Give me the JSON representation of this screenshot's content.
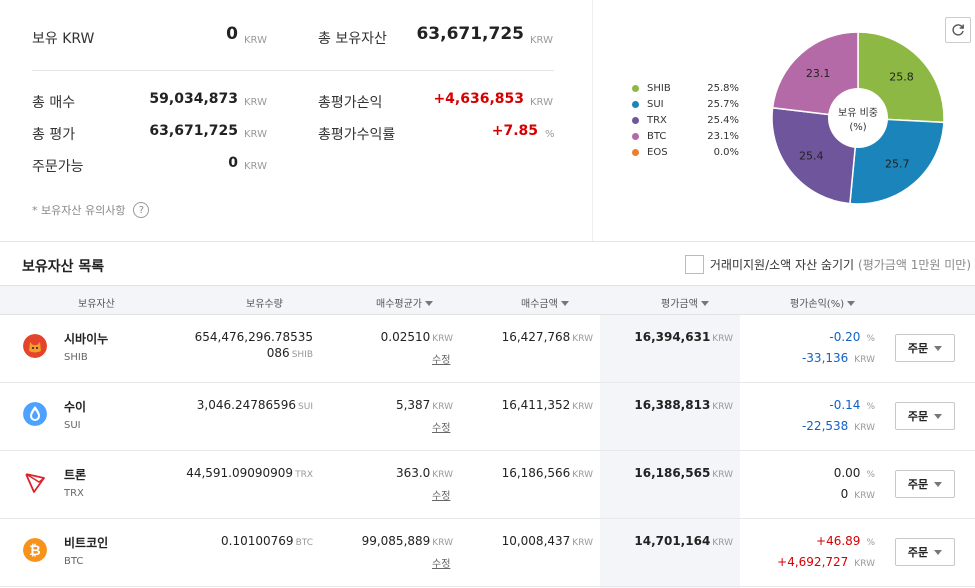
{
  "summary": {
    "krw_label": "보유 KRW",
    "krw_value": "0",
    "krw_unit": "KRW",
    "total_assets_label": "총 보유자산",
    "total_assets_value": "63,671,725",
    "total_assets_unit": "KRW",
    "total_buy_label": "총 매수",
    "total_buy_value": "59,034,873",
    "total_buy_unit": "KRW",
    "total_pl_label": "총평가손익",
    "total_pl_value": "+4,636,853",
    "total_pl_unit": "KRW",
    "total_eval_label": "총 평가",
    "total_eval_value": "63,671,725",
    "total_eval_unit": "KRW",
    "total_rate_label": "총평가수익률",
    "total_rate_value": "+7.85",
    "total_rate_unit": "%",
    "orderable_label": "주문가능",
    "orderable_value": "0",
    "orderable_unit": "KRW",
    "notice": "* 보유자산 유의사항",
    "notice_icon": "?"
  },
  "pie": {
    "center_line1": "보유 비중",
    "center_line2": "(%)",
    "refresh_icon": "refresh-icon"
  },
  "chart_data": {
    "type": "pie",
    "title": "보유 비중 (%)",
    "slices": [
      {
        "name": "SHIB",
        "value": 25.8,
        "label": "25.8%",
        "color": "#8db844"
      },
      {
        "name": "SUI",
        "value": 25.7,
        "label": "25.7%",
        "color": "#1a84bb"
      },
      {
        "name": "TRX",
        "value": 25.4,
        "label": "25.4%",
        "color": "#6e559c"
      },
      {
        "name": "BTC",
        "value": 23.1,
        "label": "23.1%",
        "color": "#b56aa8"
      },
      {
        "name": "EOS",
        "value": 0.0,
        "label": "0.0%",
        "color": "#f07b2a"
      }
    ]
  },
  "list": {
    "title": "보유자산 목록",
    "hide_label": "거래미지원/소액 자산 숨기기",
    "hide_note": "(평가금액 1만원 미만)"
  },
  "table": {
    "headers": {
      "asset": "보유자산",
      "qty": "보유수량",
      "avg": "매수평균가",
      "buy": "매수금액",
      "eval": "평가금액",
      "pl": "평가손익(%)"
    },
    "rows": [
      {
        "name": "시바이누",
        "symbol": "SHIB",
        "icon": "shib-icon",
        "qty_line1": "654,476,296.78535",
        "qty_line2": "086",
        "qty_unit": "SHIB",
        "avg": "0.02510",
        "avg_unit": "KRW",
        "edit": "수정",
        "buy": "16,427,768",
        "buy_unit": "KRW",
        "eval": "16,394,631",
        "eval_unit": "KRW",
        "pl_rate": "-0.20",
        "pl_rate_unit": "%",
        "pl_amount": "-33,136",
        "pl_amount_unit": "KRW",
        "order": "주문",
        "tone": "blue"
      },
      {
        "name": "수이",
        "symbol": "SUI",
        "icon": "sui-icon",
        "qty_line1": "3,046.24786596",
        "qty_line2": "",
        "qty_unit": "SUI",
        "avg": "5,387",
        "avg_unit": "KRW",
        "edit": "수정",
        "buy": "16,411,352",
        "buy_unit": "KRW",
        "eval": "16,388,813",
        "eval_unit": "KRW",
        "pl_rate": "-0.14",
        "pl_rate_unit": "%",
        "pl_amount": "-22,538",
        "pl_amount_unit": "KRW",
        "order": "주문",
        "tone": "blue"
      },
      {
        "name": "트론",
        "symbol": "TRX",
        "icon": "trx-icon",
        "qty_line1": "44,591.09090909",
        "qty_line2": "",
        "qty_unit": "TRX",
        "avg": "363.0",
        "avg_unit": "KRW",
        "edit": "수정",
        "buy": "16,186,566",
        "buy_unit": "KRW",
        "eval": "16,186,565",
        "eval_unit": "KRW",
        "pl_rate": "0.00",
        "pl_rate_unit": "%",
        "pl_amount": "0",
        "pl_amount_unit": "KRW",
        "order": "주문",
        "tone": "neutral"
      },
      {
        "name": "비트코인",
        "symbol": "BTC",
        "icon": "btc-icon",
        "qty_line1": "0.10100769",
        "qty_line2": "",
        "qty_unit": "BTC",
        "avg": "99,085,889",
        "avg_unit": "KRW",
        "edit": "수정",
        "buy": "10,008,437",
        "buy_unit": "KRW",
        "eval": "14,701,164",
        "eval_unit": "KRW",
        "pl_rate": "+46.89",
        "pl_rate_unit": "%",
        "pl_amount": "+4,692,727",
        "pl_amount_unit": "KRW",
        "order": "주문",
        "tone": "red"
      }
    ]
  }
}
